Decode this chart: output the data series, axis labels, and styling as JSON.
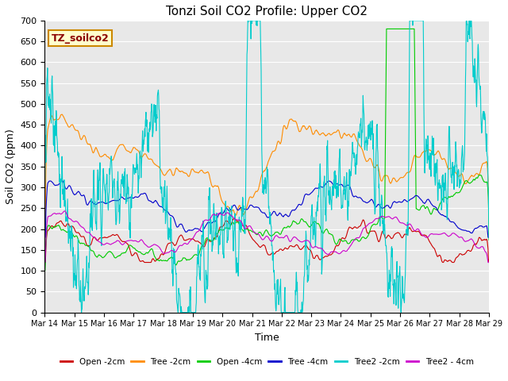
{
  "title": "Tonzi Soil CO2 Profile: Upper CO2",
  "xlabel": "Time",
  "ylabel": "Soil CO2 (ppm)",
  "ylim": [
    0,
    700
  ],
  "yticks": [
    0,
    50,
    100,
    150,
    200,
    250,
    300,
    350,
    400,
    450,
    500,
    550,
    600,
    650,
    700
  ],
  "legend_label": "TZ_soilco2",
  "series": [
    {
      "label": "Open -2cm",
      "color": "#cc0000"
    },
    {
      "label": "Tree -2cm",
      "color": "#ff8c00"
    },
    {
      "label": "Open -4cm",
      "color": "#00cc00"
    },
    {
      "label": "Tree -4cm",
      "color": "#0000cc"
    },
    {
      "label": "Tree2 -2cm",
      "color": "#00cccc"
    },
    {
      "label": "Tree2 - 4cm",
      "color": "#cc00cc"
    }
  ],
  "date_labels": [
    "Mar 14",
    "Mar 15",
    "Mar 16",
    "Mar 17",
    "Mar 18",
    "Mar 19",
    "Mar 20",
    "Mar 21",
    "Mar 22",
    "Mar 23",
    "Mar 24",
    "Mar 25",
    "Mar 26",
    "Mar 27",
    "Mar 28",
    "Mar 29"
  ],
  "n_points": 1440,
  "plot_bg": "#e8e8e8",
  "background_color": "#ffffff",
  "grid_color": "#ffffff"
}
